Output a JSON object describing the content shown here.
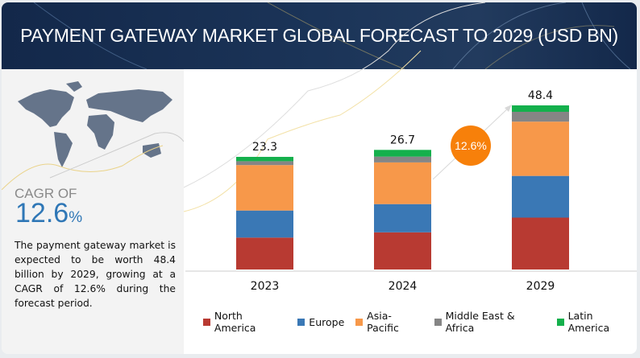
{
  "header": {
    "title": "PAYMENT GATEWAY MARKET GLOBAL FORECAST TO 2029 (USD BN)"
  },
  "left_panel": {
    "map_icon": "world-map",
    "cagr_label": "CAGR OF",
    "cagr_value": "12.6",
    "cagr_unit": "%",
    "description": "The payment gateway market is expected to be worth 48.4 billion by 2029, growing at a CAGR of 12.6% during the forecast period."
  },
  "chart_data": {
    "type": "bar",
    "stacked": true,
    "title": "PAYMENT GATEWAY MARKET GLOBAL FORECAST TO 2029 (USD BN)",
    "categories": [
      "2023",
      "2024",
      "2029"
    ],
    "totals": [
      "23.3",
      "26.7",
      "48.4"
    ],
    "series": [
      {
        "name": "North America",
        "color": "#b83a32",
        "values": [
          6.6,
          8.3,
          15.3
        ]
      },
      {
        "name": "Europe",
        "color": "#3a78b5",
        "values": [
          5.6,
          6.3,
          12.3
        ]
      },
      {
        "name": "Asia-Pacific",
        "color": "#f7984a",
        "values": [
          9.4,
          9.3,
          16.0
        ]
      },
      {
        "name": "Middle East & Africa",
        "color": "#858585",
        "values": [
          0.8,
          1.3,
          2.9
        ]
      },
      {
        "name": "Latin America",
        "color": "#14b04c",
        "values": [
          0.9,
          1.5,
          1.9
        ]
      }
    ],
    "cagr_badge": "12.6%",
    "cagr_badge_color": "#f7800a",
    "legend_position": "bottom",
    "grid": false
  }
}
